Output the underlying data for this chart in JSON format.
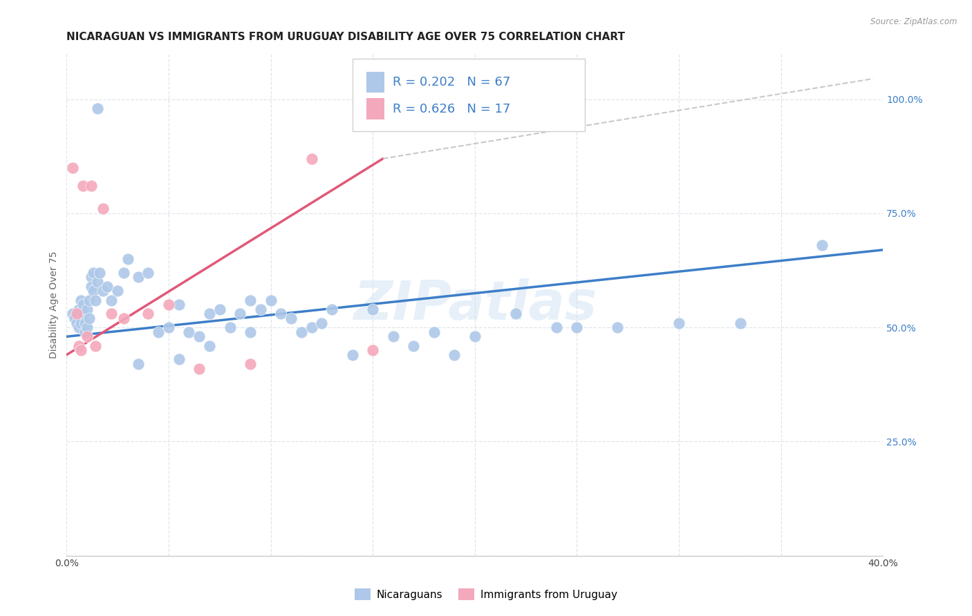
{
  "title": "NICARAGUAN VS IMMIGRANTS FROM URUGUAY DISABILITY AGE OVER 75 CORRELATION CHART",
  "source": "Source: ZipAtlas.com",
  "ylabel": "Disability Age Over 75",
  "xlim": [
    0.0,
    0.4
  ],
  "ylim": [
    0.0,
    1.1
  ],
  "xticks": [
    0.0,
    0.05,
    0.1,
    0.15,
    0.2,
    0.25,
    0.3,
    0.35,
    0.4
  ],
  "ytick_vals_right": [
    0.0,
    0.25,
    0.5,
    0.75,
    1.0
  ],
  "blue_color": "#adc8e8",
  "pink_color": "#f4a8bb",
  "blue_line_color": "#3d7ec8",
  "pink_line_color": "#e05878",
  "dashed_line_color": "#c8c8c8",
  "legend_R_blue": "0.202",
  "legend_N_blue": "67",
  "legend_R_pink": "0.626",
  "legend_N_pink": "17",
  "legend_label_blue": "Nicaraguans",
  "legend_label_pink": "Immigrants from Uruguay",
  "watermark": "ZIPatlas",
  "blue_scatter_x": [
    0.003,
    0.004,
    0.005,
    0.006,
    0.006,
    0.007,
    0.007,
    0.008,
    0.008,
    0.009,
    0.009,
    0.01,
    0.01,
    0.011,
    0.011,
    0.012,
    0.012,
    0.013,
    0.013,
    0.014,
    0.015,
    0.016,
    0.018,
    0.02,
    0.022,
    0.025,
    0.028,
    0.03,
    0.035,
    0.04,
    0.045,
    0.05,
    0.055,
    0.06,
    0.065,
    0.07,
    0.075,
    0.08,
    0.085,
    0.09,
    0.095,
    0.1,
    0.105,
    0.11,
    0.115,
    0.12,
    0.13,
    0.14,
    0.15,
    0.16,
    0.17,
    0.18,
    0.19,
    0.2,
    0.22,
    0.24,
    0.27,
    0.3,
    0.33,
    0.37,
    0.125,
    0.055,
    0.07,
    0.035,
    0.25,
    0.09,
    0.015
  ],
  "blue_scatter_y": [
    0.53,
    0.52,
    0.51,
    0.54,
    0.5,
    0.56,
    0.51,
    0.53,
    0.55,
    0.51,
    0.49,
    0.54,
    0.5,
    0.56,
    0.52,
    0.61,
    0.59,
    0.62,
    0.58,
    0.56,
    0.6,
    0.62,
    0.58,
    0.59,
    0.56,
    0.58,
    0.62,
    0.65,
    0.61,
    0.62,
    0.49,
    0.5,
    0.55,
    0.49,
    0.48,
    0.53,
    0.54,
    0.5,
    0.53,
    0.56,
    0.54,
    0.56,
    0.53,
    0.52,
    0.49,
    0.5,
    0.54,
    0.44,
    0.54,
    0.48,
    0.46,
    0.49,
    0.44,
    0.48,
    0.53,
    0.5,
    0.5,
    0.51,
    0.51,
    0.68,
    0.51,
    0.43,
    0.46,
    0.42,
    0.5,
    0.49,
    0.98
  ],
  "pink_scatter_x": [
    0.003,
    0.005,
    0.006,
    0.007,
    0.008,
    0.01,
    0.012,
    0.014,
    0.018,
    0.022,
    0.028,
    0.04,
    0.05,
    0.065,
    0.09,
    0.12,
    0.15
  ],
  "pink_scatter_y": [
    0.85,
    0.53,
    0.46,
    0.45,
    0.81,
    0.48,
    0.81,
    0.46,
    0.76,
    0.53,
    0.52,
    0.53,
    0.55,
    0.41,
    0.42,
    0.87,
    0.45
  ],
  "blue_trendline_x": [
    0.0,
    0.4
  ],
  "blue_trendline_y": [
    0.48,
    0.67
  ],
  "pink_trendline_x": [
    0.0,
    0.155
  ],
  "pink_trendline_y": [
    0.44,
    0.87
  ],
  "dashed_trendline_x": [
    0.155,
    0.395
  ],
  "dashed_trendline_y": [
    0.87,
    1.045
  ],
  "grid_color": "#e0e4ea",
  "background_color": "#ffffff",
  "title_fontsize": 11,
  "axis_label_fontsize": 10,
  "tick_fontsize": 10,
  "legend_fontsize": 13,
  "legend_color": "#3d7ec8"
}
